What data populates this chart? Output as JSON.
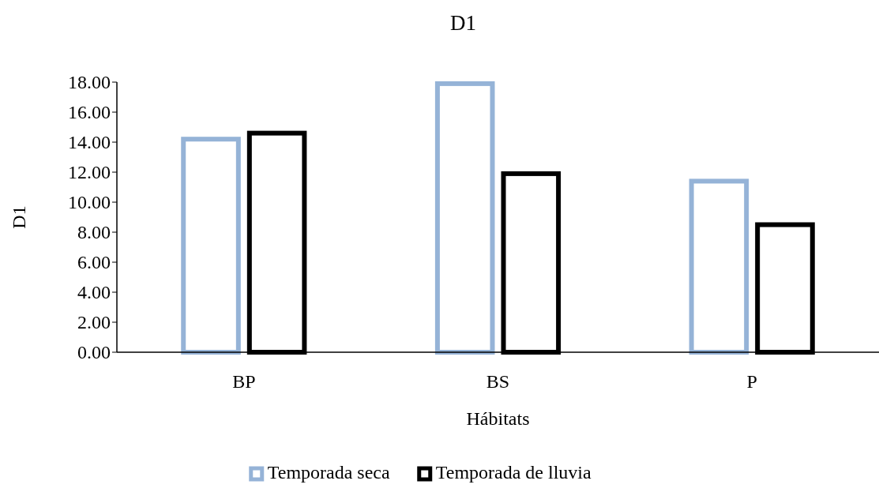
{
  "chart_data": {
    "type": "bar",
    "title": "D1",
    "xlabel": "Hábitats",
    "ylabel": "D1",
    "categories": [
      "BP",
      "BS",
      "P"
    ],
    "series": [
      {
        "name": "Temporada seca",
        "color": "#95b3d7",
        "values": [
          14.2,
          17.9,
          11.4
        ]
      },
      {
        "name": "Temporada de lluvia",
        "color": "#000000",
        "values": [
          14.6,
          11.9,
          8.5
        ]
      }
    ],
    "ylim": [
      0,
      18
    ],
    "yticks": [
      {
        "value": 0,
        "label": "0.00"
      },
      {
        "value": 2,
        "label": "2.00"
      },
      {
        "value": 4,
        "label": "4.00"
      },
      {
        "value": 6,
        "label": "6.00"
      },
      {
        "value": 8,
        "label": "8.00"
      },
      {
        "value": 10,
        "label": "10.00"
      },
      {
        "value": 12,
        "label": "12.00"
      },
      {
        "value": 14,
        "label": "14.00"
      },
      {
        "value": 16,
        "label": "16.00"
      },
      {
        "value": 18,
        "label": "18.00"
      }
    ],
    "grid": false,
    "legend": "bottom"
  }
}
